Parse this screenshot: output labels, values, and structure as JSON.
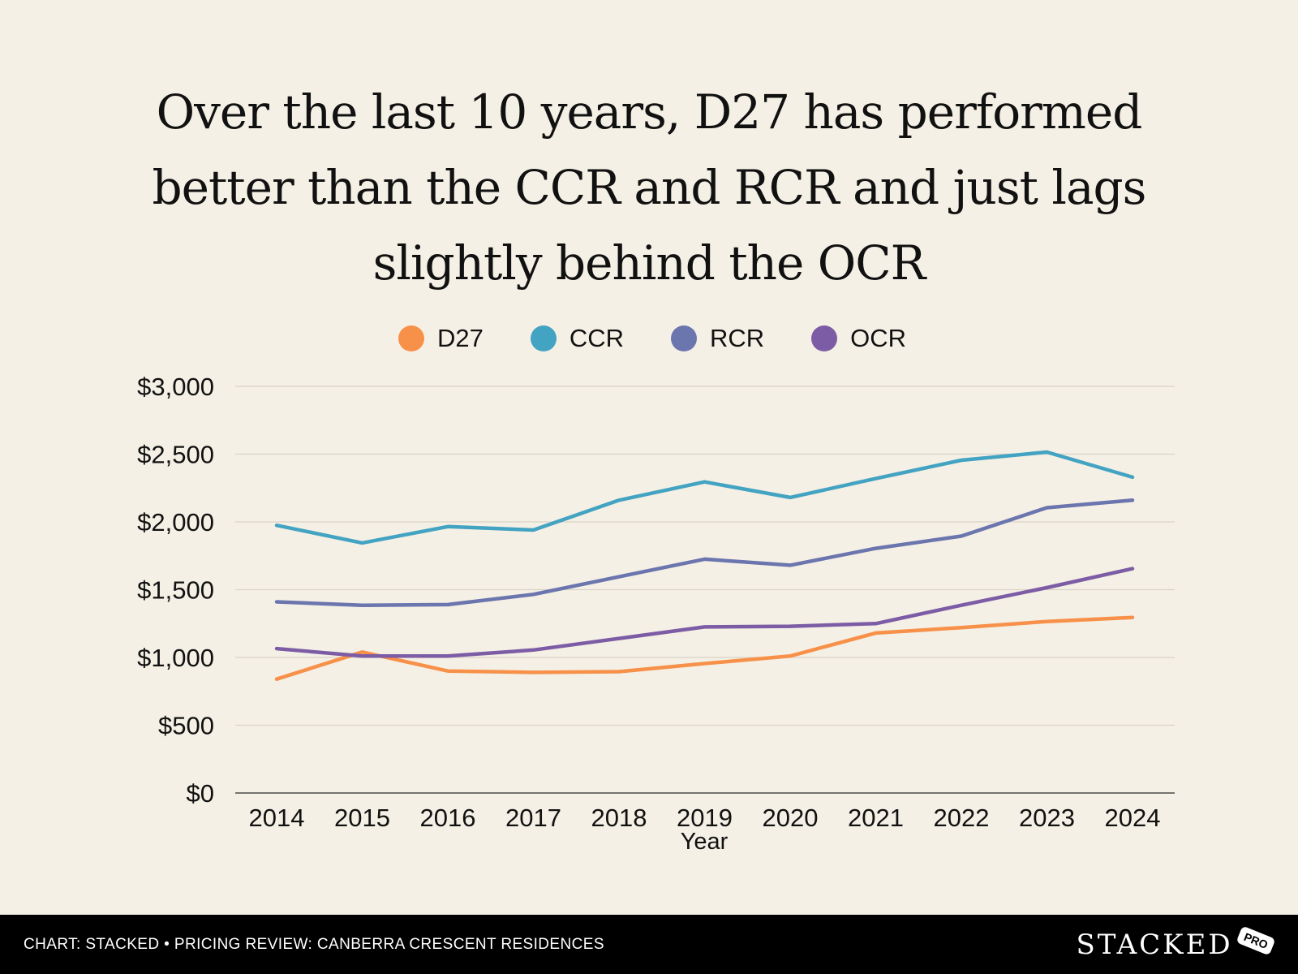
{
  "chart_data": {
    "type": "line",
    "title": "Over the last 10 years, D27 has performed better than the CCR and RCR and just lags slightly behind the OCR",
    "xlabel": "Year",
    "ylabel": "",
    "categories": [
      "2014",
      "2015",
      "2016",
      "2017",
      "2018",
      "2019",
      "2020",
      "2021",
      "2022",
      "2023",
      "2024"
    ],
    "ylim": [
      0,
      3000
    ],
    "yticks": [
      0,
      500,
      1000,
      1500,
      2000,
      2500,
      3000
    ],
    "ytick_labels": [
      "$0",
      "$500",
      "$1,000",
      "$1,500",
      "$2,000",
      "$2,500",
      "$3,000"
    ],
    "grid": true,
    "legend_position": "top-center",
    "series": [
      {
        "name": "D27",
        "color": "#f7914a",
        "values": [
          840,
          1040,
          900,
          890,
          895,
          955,
          1010,
          1180,
          1220,
          1265,
          1295
        ]
      },
      {
        "name": "CCR",
        "color": "#43a3c2",
        "values": [
          1975,
          1845,
          1965,
          1940,
          2160,
          2295,
          2180,
          2320,
          2455,
          2515,
          2330
        ]
      },
      {
        "name": "RCR",
        "color": "#6b75ae",
        "values": [
          1410,
          1385,
          1390,
          1465,
          1595,
          1725,
          1680,
          1805,
          1895,
          2105,
          2160
        ]
      },
      {
        "name": "OCR",
        "color": "#7d5ca6",
        "values": [
          1065,
          1010,
          1010,
          1055,
          1140,
          1225,
          1230,
          1250,
          1385,
          1515,
          1655
        ]
      }
    ]
  },
  "footer": {
    "credit": "CHART: STACKED • PRICING REVIEW: CANBERRA CRESCENT RESIDENCES",
    "brand": "STACKED",
    "badge": "PRO"
  }
}
